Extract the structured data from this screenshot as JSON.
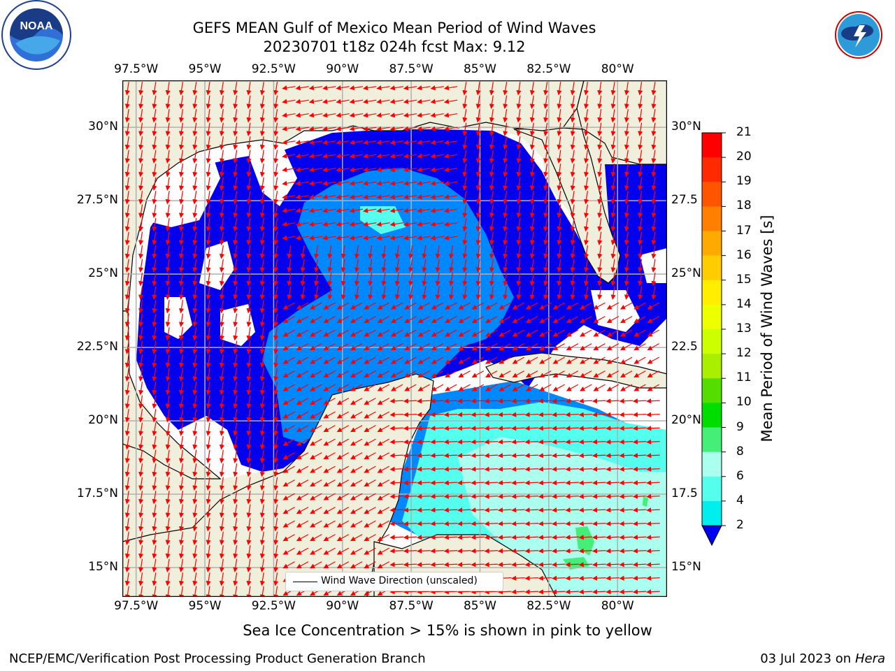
{
  "header": {
    "title_line1": "GEFS MEAN Gulf of Mexico Mean Period of Wind Waves",
    "title_line2": "20230701 t18z 024h fcst   Max: 9.12"
  },
  "map": {
    "lon_labels": [
      "97.5°W",
      "95°W",
      "92.5°W",
      "90°W",
      "87.5°W",
      "85°W",
      "82.5°W",
      "80°W"
    ],
    "lat_labels": [
      "30°N",
      "27.5°N",
      "25°N",
      "22.5°N",
      "20°N",
      "17.5°N",
      "15°N"
    ],
    "lat_labels_right": [
      "30°N",
      "27.5",
      "25°N",
      "22.5",
      "20°N",
      "17.5",
      "15°N"
    ],
    "legend_label": "Wind Wave Direction (unscaled)",
    "extent": {
      "lon_min": -98,
      "lon_max": -78.2,
      "lat_min": 14.0,
      "lat_max": 31.6
    }
  },
  "colorbar": {
    "label": "Mean Period of Wind Waves [s]",
    "ticks": [
      "21",
      "20",
      "19",
      "18",
      "17",
      "16",
      "15",
      "14",
      "13",
      "12",
      "11",
      "10",
      "9",
      "8",
      "6",
      "4",
      "2"
    ],
    "colors": [
      "#ff0000",
      "#ff2a00",
      "#ff5500",
      "#ff7f00",
      "#ffaa00",
      "#ffcc00",
      "#ffee00",
      "#eeff00",
      "#ccff00",
      "#aaee00",
      "#55dd00",
      "#00dd00",
      "#44ee77",
      "#aaffee",
      "#55ffee",
      "#00eeee",
      "#0088ff",
      "#0000ee"
    ]
  },
  "notes": {
    "sea_ice": "Sea Ice Concentration > 15% is shown in pink to yellow"
  },
  "footer": {
    "left": "NCEP/EMC/Verification Post Processing Product Generation Branch",
    "right_date": "03 Jul 2023 on ",
    "right_host": "Hera"
  },
  "logos": {
    "left": "NOAA",
    "right": "NATIONAL WEATHER SERVICE"
  }
}
